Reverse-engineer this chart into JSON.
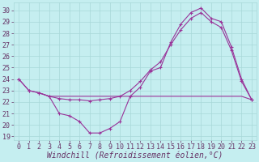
{
  "bg_color": "#c5eef0",
  "grid_color": "#a8d8d8",
  "line_color": "#993399",
  "xlabel": "Windchill (Refroidissement éolien,°C)",
  "xlim": [
    -0.5,
    23.5
  ],
  "ylim_min": 18.7,
  "ylim_max": 30.7,
  "yticks": [
    19,
    20,
    21,
    22,
    23,
    24,
    25,
    26,
    27,
    28,
    29,
    30
  ],
  "xticks": [
    0,
    1,
    2,
    3,
    4,
    5,
    6,
    7,
    8,
    9,
    10,
    11,
    12,
    13,
    14,
    15,
    16,
    17,
    18,
    19,
    20,
    21,
    22,
    23
  ],
  "line1_x": [
    0,
    1,
    2,
    3,
    4,
    5,
    6,
    7,
    8,
    9,
    10,
    11,
    12,
    13,
    14,
    15,
    16,
    17,
    18,
    19,
    20,
    21,
    22,
    23
  ],
  "line1_y": [
    24.0,
    23.0,
    22.8,
    22.5,
    21.0,
    20.8,
    20.3,
    19.3,
    19.3,
    19.7,
    20.3,
    22.5,
    23.3,
    24.7,
    25.0,
    27.2,
    28.8,
    29.8,
    30.2,
    29.3,
    29.0,
    26.8,
    24.0,
    22.2
  ],
  "line2_x": [
    2,
    3,
    4,
    5,
    6,
    7,
    8,
    9,
    10,
    11,
    12,
    13,
    14,
    22,
    23
  ],
  "line2_y": [
    22.8,
    22.5,
    22.5,
    22.5,
    22.5,
    22.5,
    22.5,
    22.5,
    22.5,
    22.5,
    22.5,
    22.5,
    22.5,
    22.5,
    22.2
  ],
  "line3_x": [
    0,
    1,
    2,
    3,
    4,
    5,
    6,
    7,
    8,
    9,
    10,
    11,
    12,
    13,
    14,
    15,
    16,
    17,
    18,
    19,
    20,
    21,
    22,
    23
  ],
  "line3_y": [
    24.0,
    23.0,
    22.8,
    22.5,
    22.3,
    22.2,
    22.2,
    22.1,
    22.2,
    22.3,
    22.5,
    23.0,
    23.8,
    24.8,
    25.5,
    27.0,
    28.3,
    29.3,
    29.8,
    29.0,
    28.5,
    26.5,
    23.8,
    22.2
  ],
  "font_color": "#663366",
  "tick_fontsize": 6,
  "label_fontsize": 7,
  "marker_size": 3,
  "lw": 0.8
}
